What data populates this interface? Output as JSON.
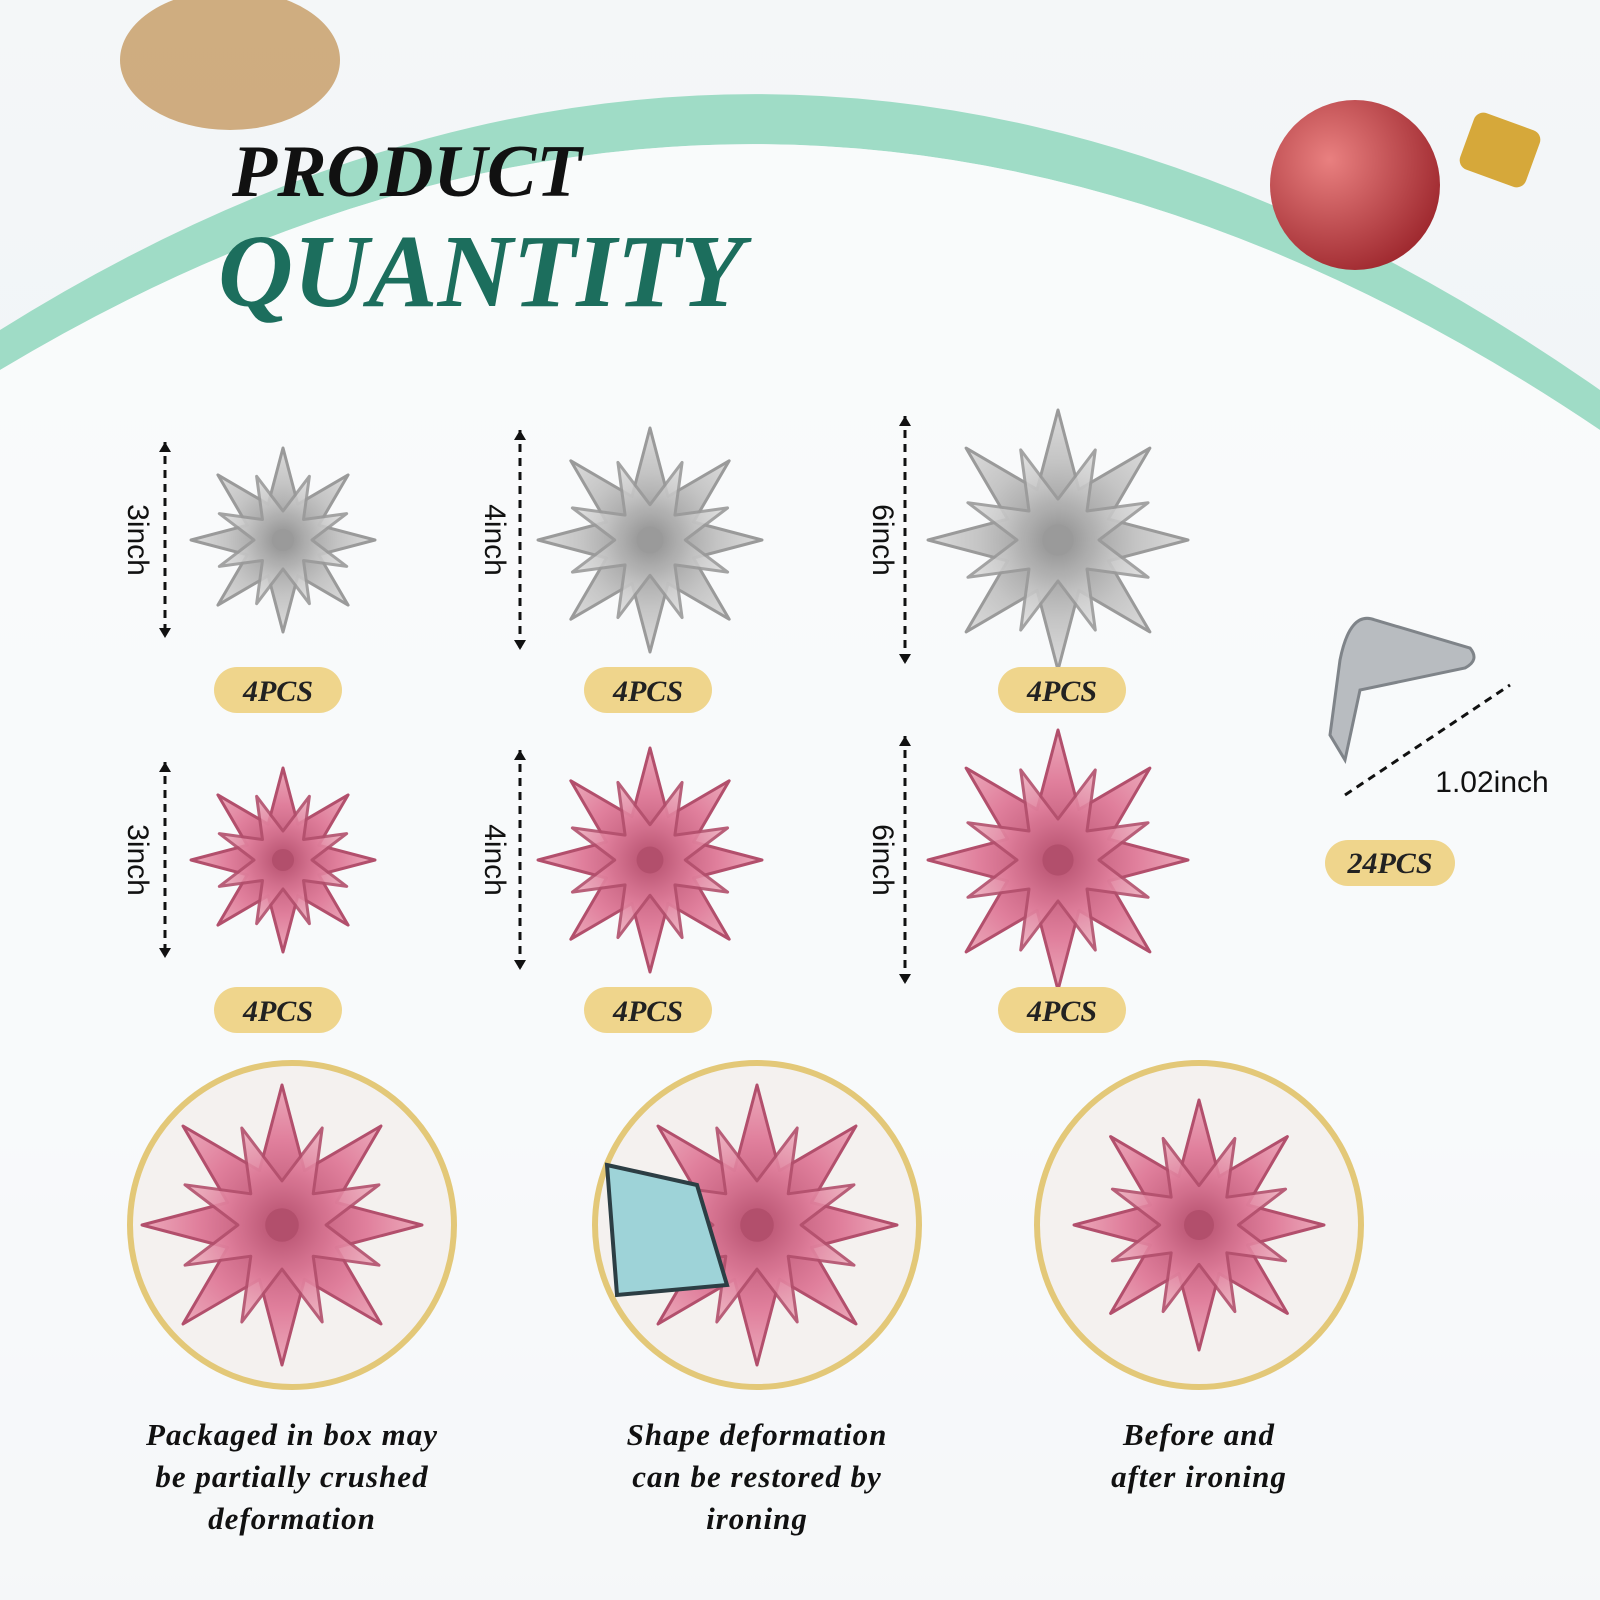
{
  "header": {
    "line1": "PRODUCT",
    "line2": "QUANTITY"
  },
  "items": [
    {
      "size": "3inch",
      "quantity": "4PCS"
    },
    {
      "size": "4inch",
      "quantity": "4PCS"
    },
    {
      "size": "6inch",
      "quantity": "4PCS"
    },
    {
      "size": "3inch",
      "quantity": "4PCS"
    },
    {
      "size": "4inch",
      "quantity": "4PCS"
    },
    {
      "size": "6inch",
      "quantity": "4PCS"
    }
  ],
  "clip": {
    "size": "1.02inch",
    "quantity": "24PCS"
  },
  "notes": [
    [
      "Packaged in box may",
      "be partially crushed",
      "deformation"
    ],
    [
      "Shape deformation",
      "can be restored by",
      "ironing"
    ],
    [
      "Before and",
      "after ironing"
    ]
  ]
}
